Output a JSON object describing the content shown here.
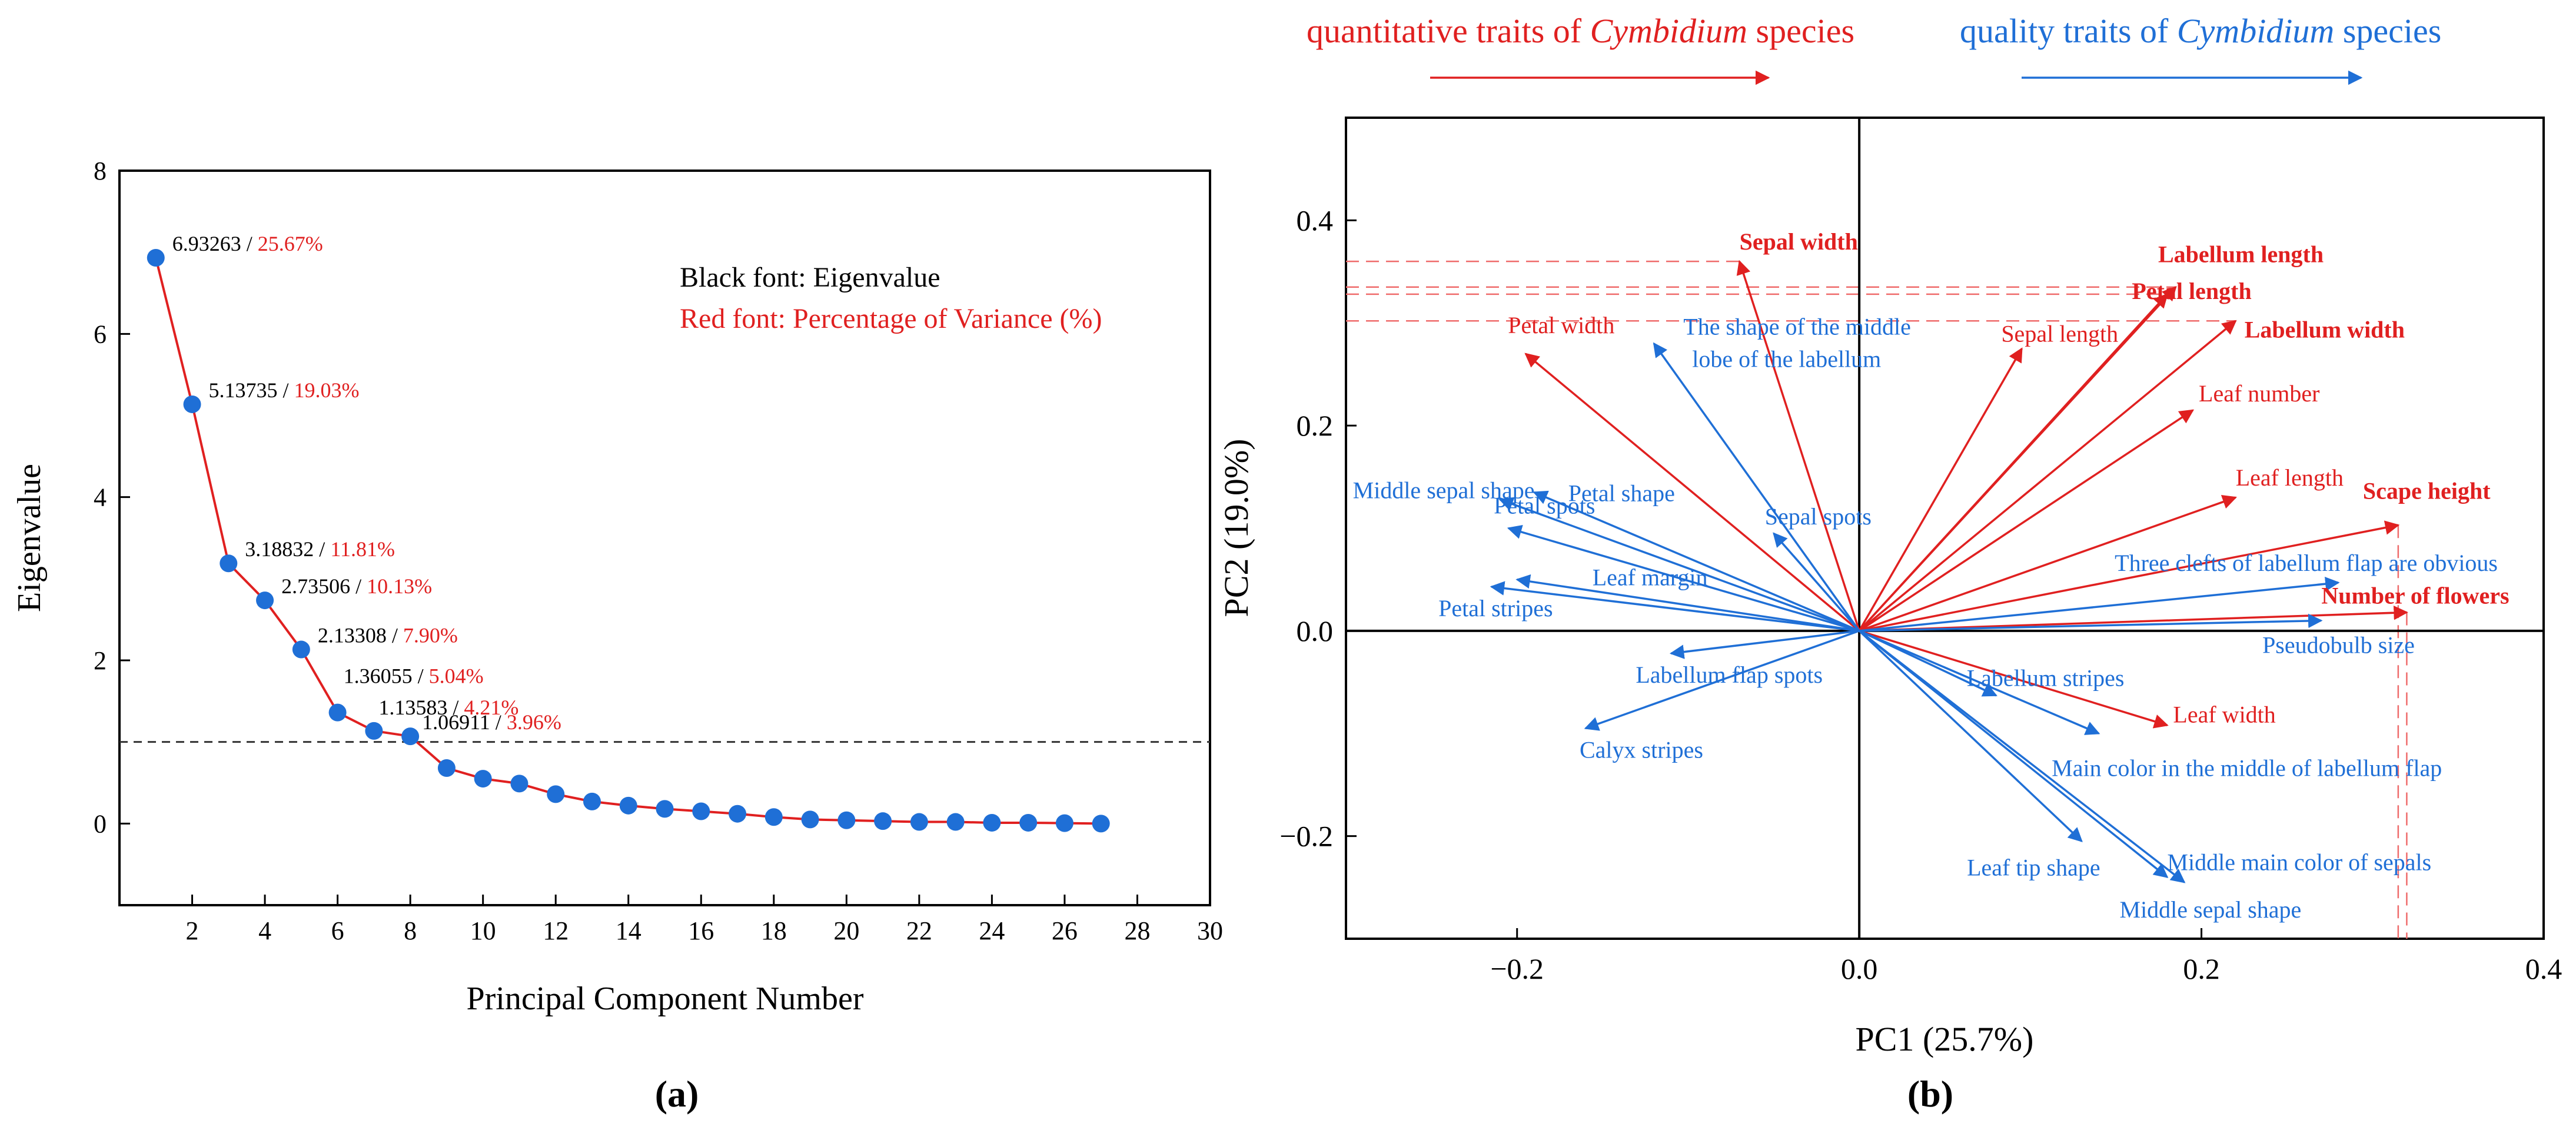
{
  "chart_data": [
    {
      "type": "line",
      "panel_label": "(a)",
      "xlabel": "Principal Component Number",
      "ylabel": "Eigenvalue",
      "xlim": [
        0,
        30
      ],
      "ylim": [
        -1,
        8
      ],
      "xticks": [
        "2",
        "4",
        "6",
        "8",
        "10",
        "12",
        "14",
        "16",
        "18",
        "20",
        "22",
        "24",
        "26",
        "28",
        "30"
      ],
      "yticks": [
        "0",
        "2",
        "4",
        "6",
        "8"
      ],
      "reference_line": 1,
      "legend_lines": [
        "Black font: Eigenvalue",
        "Red font: Percentage of Variance (%)"
      ],
      "line_color": "#e02020",
      "marker_color": "#1f6fd6",
      "x": [
        1,
        2,
        3,
        4,
        5,
        6,
        7,
        8,
        9,
        10,
        11,
        12,
        13,
        14,
        15,
        16,
        17,
        18,
        19,
        20,
        21,
        22,
        23,
        24,
        25,
        26,
        27
      ],
      "values": [
        6.93263,
        5.13735,
        3.18832,
        2.73506,
        2.13308,
        1.36055,
        1.13583,
        1.06911,
        0.68,
        0.55,
        0.49,
        0.36,
        0.27,
        0.22,
        0.18,
        0.15,
        0.12,
        0.08,
        0.05,
        0.04,
        0.03,
        0.02,
        0.02,
        0.01,
        0.01,
        0.005,
        0.0
      ],
      "annotations": [
        {
          "eig": "6.93263",
          "pct": "25.67%"
        },
        {
          "eig": "5.13735",
          "pct": "19.03%"
        },
        {
          "eig": "3.18832",
          "pct": "11.81%"
        },
        {
          "eig": "2.73506",
          "pct": "10.13%"
        },
        {
          "eig": "2.13308",
          "pct": "7.90%"
        },
        {
          "eig": "1.36055",
          "pct": "5.04%"
        },
        {
          "eig": "1.13583",
          "pct": "4.21%"
        },
        {
          "eig": "1.06911",
          "pct": "3.96%"
        }
      ]
    },
    {
      "type": "scatter",
      "subtype": "biplot",
      "panel_label": "(b)",
      "xlabel": "PC1 (25.7%)",
      "ylabel": "PC2 (19.0%)",
      "xlim": [
        -0.3,
        0.4
      ],
      "ylim": [
        -0.3,
        0.5
      ],
      "xticks": [
        "−0.2",
        "0.0",
        "0.2",
        "0.4"
      ],
      "yticks": [
        "−0.2",
        "0.0",
        "0.2",
        "0.4"
      ],
      "xtick_values": [
        -0.2,
        0.0,
        0.2,
        0.4
      ],
      "ytick_values": [
        -0.2,
        0.0,
        0.2,
        0.4
      ],
      "header": {
        "quantitative_prefix": "quantitative traits of ",
        "quantitative_italic": "Cymbidium",
        "quantitative_suffix": " species",
        "quality_prefix": "quality traits of ",
        "quality_italic": "Cymbidium",
        "quality_suffix": " species"
      },
      "colors": {
        "quantitative": "#e02020",
        "quality": "#1f6fd6"
      },
      "vectors": [
        {
          "name": "Sepal width",
          "group": "quantitative",
          "bold": true,
          "x": -0.07,
          "y": 0.36
        },
        {
          "name": "Labellum length",
          "group": "quantitative",
          "bold": true,
          "x": 0.185,
          "y": 0.335
        },
        {
          "name": "Petal length",
          "group": "quantitative",
          "bold": true,
          "x": 0.18,
          "y": 0.328
        },
        {
          "name": "Labellum width",
          "group": "quantitative",
          "bold": true,
          "x": 0.22,
          "y": 0.302
        },
        {
          "name": "Scape height",
          "group": "quantitative",
          "bold": true,
          "x": 0.315,
          "y": 0.103
        },
        {
          "name": "Number of flowers",
          "group": "quantitative",
          "bold": true,
          "x": 0.32,
          "y": 0.018
        },
        {
          "name": "Sepal length",
          "group": "quantitative",
          "bold": false,
          "x": 0.095,
          "y": 0.275
        },
        {
          "name": "Leaf number",
          "group": "quantitative",
          "bold": false,
          "x": 0.195,
          "y": 0.215
        },
        {
          "name": "Leaf length",
          "group": "quantitative",
          "bold": false,
          "x": 0.22,
          "y": 0.13
        },
        {
          "name": "Leaf width",
          "group": "quantitative",
          "bold": false,
          "x": 0.18,
          "y": -0.092
        },
        {
          "name": "Petal width",
          "group": "quantitative",
          "bold": false,
          "x": -0.195,
          "y": 0.27
        },
        {
          "name": "The shape of the middle lobe of the labellum",
          "group": "quality",
          "bold": false,
          "x": -0.12,
          "y": 0.28
        },
        {
          "name": "Middle sepal shape",
          "group": "quality",
          "bold": false,
          "x": -0.21,
          "y": 0.128
        },
        {
          "name": "Petal shape",
          "group": "quality",
          "bold": false,
          "x": -0.19,
          "y": 0.135
        },
        {
          "name": "Sepal spots",
          "group": "quality",
          "bold": false,
          "x": -0.05,
          "y": 0.095
        },
        {
          "name": "Petal spots",
          "group": "quality",
          "bold": false,
          "x": -0.205,
          "y": 0.1
        },
        {
          "name": "Leaf margin",
          "group": "quality",
          "bold": false,
          "x": -0.2,
          "y": 0.05
        },
        {
          "name": "Petal stripes",
          "group": "quality",
          "bold": false,
          "x": -0.215,
          "y": 0.043
        },
        {
          "name": "Three clefts of labellum flap are obvious",
          "group": "quality",
          "bold": false,
          "x": 0.28,
          "y": 0.047
        },
        {
          "name": "Pseudobulb size",
          "group": "quality",
          "bold": false,
          "x": 0.27,
          "y": 0.01
        },
        {
          "name": "Labellum flap spots",
          "group": "quality",
          "bold": false,
          "x": -0.11,
          "y": -0.022
        },
        {
          "name": "Calyx stripes",
          "group": "quality",
          "bold": false,
          "x": -0.16,
          "y": -0.095
        },
        {
          "name": "Labellum stripes",
          "group": "quality",
          "bold": false,
          "x": 0.08,
          "y": -0.063
        },
        {
          "name": "Main color in the middle of labellum flap",
          "group": "quality",
          "bold": false,
          "x": 0.14,
          "y": -0.1
        },
        {
          "name": "Leaf tip shape",
          "group": "quality",
          "bold": false,
          "x": 0.13,
          "y": -0.205
        },
        {
          "name": "Middle main color of sepals",
          "group": "quality",
          "bold": false,
          "x": 0.18,
          "y": -0.24
        },
        {
          "name": "Middle sepal shape",
          "group": "quality",
          "bold": false,
          "x": 0.19,
          "y": -0.245
        }
      ]
    }
  ]
}
